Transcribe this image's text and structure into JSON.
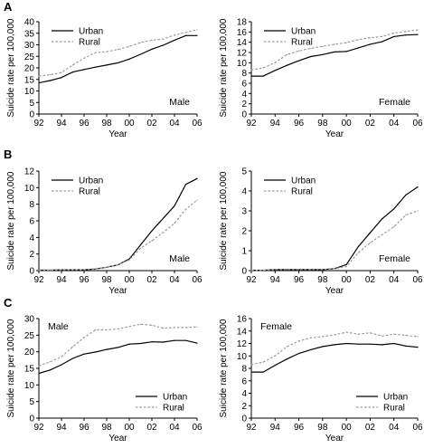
{
  "panel_letters": {
    "a": "A",
    "b": "B",
    "c": "C"
  },
  "colors": {
    "urban": "#000000",
    "rural": "#9a9a9a",
    "axis": "#000000"
  },
  "chart_data": [
    {
      "type": "line",
      "panel": "A",
      "subplot": "left",
      "annotation": "Male",
      "xlabel": "Year",
      "ylabel": "Suicide rate per 100,000",
      "ylim": [
        0,
        40
      ],
      "yticks": [
        0,
        5,
        10,
        15,
        20,
        25,
        30,
        35,
        40
      ],
      "xlim": [
        1992,
        2006
      ],
      "xticks": [
        1992,
        1994,
        1996,
        1998,
        2000,
        2002,
        2004,
        2006
      ],
      "xticklabels": [
        "92",
        "94",
        "96",
        "98",
        "00",
        "02",
        "04",
        "06"
      ],
      "legend": "top-left",
      "x": [
        1992,
        1993,
        1994,
        1995,
        1996,
        1997,
        1998,
        1999,
        2000,
        2001,
        2002,
        2003,
        2004,
        2005,
        2006
      ],
      "series": [
        {
          "name": "Urban",
          "style": "solid",
          "values": [
            13.5,
            14.5,
            15.8,
            18.2,
            19.3,
            20.3,
            21.2,
            22.2,
            23.8,
            25.9,
            28.1,
            29.8,
            32.0,
            34.0,
            34.0
          ]
        },
        {
          "name": "Rural",
          "style": "dotted",
          "values": [
            16.5,
            17.0,
            18.0,
            21.2,
            24.2,
            26.6,
            27.0,
            28.0,
            29.3,
            31.0,
            32.0,
            32.5,
            34.2,
            35.4,
            36.5
          ]
        }
      ]
    },
    {
      "type": "line",
      "panel": "A",
      "subplot": "right",
      "annotation": "Female",
      "xlabel": "Year",
      "ylabel": "Suicide rate per 100,000",
      "ylim": [
        0,
        18
      ],
      "yticks": [
        0,
        2,
        4,
        6,
        8,
        10,
        12,
        14,
        16,
        18
      ],
      "xlim": [
        1992,
        2006
      ],
      "xticks": [
        1992,
        1994,
        1996,
        1998,
        2000,
        2002,
        2004,
        2006
      ],
      "xticklabels": [
        "92",
        "94",
        "96",
        "98",
        "00",
        "02",
        "04",
        "06"
      ],
      "legend": "top-left",
      "x": [
        1992,
        1993,
        1994,
        1995,
        1996,
        1997,
        1998,
        1999,
        2000,
        2001,
        2002,
        2003,
        2004,
        2005,
        2006
      ],
      "series": [
        {
          "name": "Urban",
          "style": "solid",
          "values": [
            7.4,
            7.4,
            8.5,
            9.5,
            10.4,
            11.2,
            11.6,
            12.1,
            12.2,
            12.9,
            13.6,
            14.1,
            15.1,
            15.4,
            15.5
          ]
        },
        {
          "name": "Rural",
          "style": "dotted",
          "values": [
            8.6,
            9.0,
            10.0,
            11.6,
            12.3,
            12.8,
            13.2,
            13.6,
            13.9,
            14.5,
            14.9,
            15.1,
            15.8,
            16.1,
            16.4
          ]
        }
      ]
    },
    {
      "type": "line",
      "panel": "B",
      "subplot": "left",
      "annotation": "Male",
      "xlabel": "Year",
      "ylabel": "Suicide rate per 100,000",
      "ylim": [
        0,
        12
      ],
      "yticks": [
        0,
        2,
        4,
        6,
        8,
        10,
        12
      ],
      "xlim": [
        1992,
        2006
      ],
      "xticks": [
        1992,
        1994,
        1996,
        1998,
        2000,
        2002,
        2004,
        2006
      ],
      "xticklabels": [
        "92",
        "94",
        "96",
        "98",
        "00",
        "02",
        "04",
        "06"
      ],
      "legend": "top-left",
      "x": [
        1992,
        1993,
        1994,
        1995,
        1996,
        1997,
        1998,
        1999,
        2000,
        2001,
        2002,
        2003,
        2004,
        2005,
        2006
      ],
      "series": [
        {
          "name": "Urban",
          "style": "solid",
          "values": [
            0.05,
            0.05,
            0.1,
            0.1,
            0.1,
            0.2,
            0.4,
            0.7,
            1.4,
            3.1,
            4.8,
            6.3,
            7.8,
            10.4,
            11.1
          ]
        },
        {
          "name": "Rural",
          "style": "dotted",
          "values": [
            0.05,
            0.05,
            0.1,
            0.1,
            0.1,
            0.2,
            0.4,
            0.7,
            1.3,
            2.7,
            3.6,
            4.6,
            5.7,
            7.4,
            8.5
          ]
        }
      ]
    },
    {
      "type": "line",
      "panel": "B",
      "subplot": "right",
      "annotation": "Female",
      "xlabel": "Year",
      "ylabel": "Suicide rate per 100,000",
      "ylim": [
        0,
        5
      ],
      "yticks": [
        0,
        1,
        2,
        3,
        4,
        5
      ],
      "xlim": [
        1992,
        2006
      ],
      "xticks": [
        1992,
        1994,
        1996,
        1998,
        2000,
        2002,
        2004,
        2006
      ],
      "xticklabels": [
        "92",
        "94",
        "96",
        "98",
        "00",
        "02",
        "04",
        "06"
      ],
      "legend": "top-left",
      "x": [
        1992,
        1993,
        1994,
        1995,
        1996,
        1997,
        1998,
        1999,
        2000,
        2001,
        2002,
        2003,
        2004,
        2005,
        2006
      ],
      "series": [
        {
          "name": "Urban",
          "style": "solid",
          "values": [
            0.02,
            0.02,
            0.05,
            0.05,
            0.05,
            0.05,
            0.05,
            0.1,
            0.3,
            1.2,
            1.9,
            2.6,
            3.1,
            3.8,
            4.2
          ]
        },
        {
          "name": "Rural",
          "style": "dotted",
          "values": [
            0.02,
            0.02,
            0.05,
            0.05,
            0.05,
            0.05,
            0.05,
            0.1,
            0.2,
            0.9,
            1.4,
            1.8,
            2.2,
            2.8,
            3.0
          ]
        }
      ]
    },
    {
      "type": "line",
      "panel": "C",
      "subplot": "left",
      "annotation": "Male",
      "xlabel": "Year",
      "ylabel": "Suicide rate per 100,000",
      "ylim": [
        0,
        30
      ],
      "yticks": [
        0,
        5,
        10,
        15,
        20,
        25,
        30
      ],
      "xlim": [
        1992,
        2006
      ],
      "xticks": [
        1992,
        1994,
        1996,
        1998,
        2000,
        2002,
        2004,
        2006
      ],
      "xticklabels": [
        "92",
        "94",
        "96",
        "98",
        "00",
        "02",
        "04",
        "06"
      ],
      "legend": "bottom-right",
      "x": [
        1992,
        1993,
        1994,
        1995,
        1996,
        1997,
        1998,
        1999,
        2000,
        2001,
        2002,
        2003,
        2004,
        2005,
        2006
      ],
      "series": [
        {
          "name": "Urban",
          "style": "solid",
          "values": [
            13.5,
            14.5,
            16.1,
            18.0,
            19.3,
            19.9,
            20.7,
            21.3,
            22.3,
            22.5,
            23.0,
            22.9,
            23.4,
            23.4,
            22.6
          ]
        },
        {
          "name": "Rural",
          "style": "dotted",
          "values": [
            15.7,
            17.0,
            18.5,
            21.5,
            24.3,
            26.6,
            26.6,
            26.9,
            27.6,
            28.3,
            28.0,
            27.1,
            27.3,
            27.3,
            27.5
          ]
        }
      ]
    },
    {
      "type": "line",
      "panel": "C",
      "subplot": "right",
      "annotation": "Female",
      "xlabel": "Year",
      "ylabel": "Suicide rate per 100,000",
      "ylim": [
        0,
        16
      ],
      "yticks": [
        0,
        2,
        4,
        6,
        8,
        10,
        12,
        14,
        16
      ],
      "xlim": [
        1992,
        2006
      ],
      "xticks": [
        1992,
        1994,
        1996,
        1998,
        2000,
        2002,
        2004,
        2006
      ],
      "xticklabels": [
        "92",
        "94",
        "96",
        "98",
        "00",
        "02",
        "04",
        "06"
      ],
      "legend": "bottom-right",
      "x": [
        1992,
        1993,
        1994,
        1995,
        1996,
        1997,
        1998,
        1999,
        2000,
        2001,
        2002,
        2003,
        2004,
        2005,
        2006
      ],
      "series": [
        {
          "name": "Urban",
          "style": "solid",
          "values": [
            7.4,
            7.4,
            8.5,
            9.5,
            10.4,
            11.0,
            11.5,
            11.8,
            12.0,
            11.9,
            11.9,
            11.8,
            12.0,
            11.6,
            11.4
          ]
        },
        {
          "name": "Rural",
          "style": "dotted",
          "values": [
            8.6,
            9.0,
            10.0,
            11.5,
            12.4,
            12.9,
            13.1,
            13.4,
            13.8,
            13.5,
            13.7,
            13.2,
            13.5,
            13.3,
            13.1
          ]
        }
      ]
    }
  ]
}
